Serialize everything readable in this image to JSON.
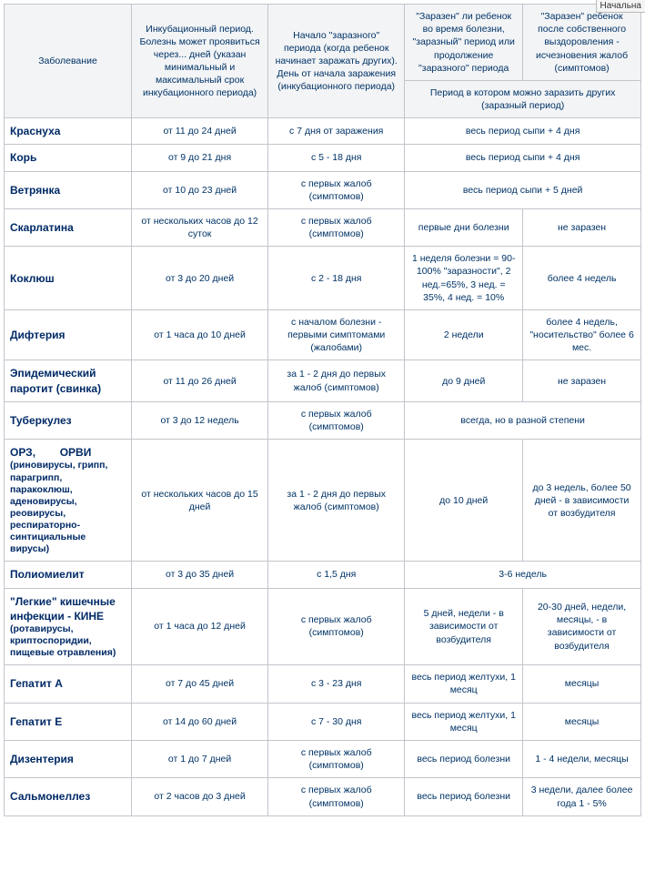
{
  "corner_label": "Начальна",
  "table": {
    "headers": {
      "disease": "Заболевание",
      "incubation": "Инкубационный период. Болезнь может проявиться через... дней (указан минимальный и максимальный срок инкубационного периода)",
      "onset": "Начало \"заразного\" периода (когда ребенок начинает заражать других). День от начала заражения (инкубационного периода)",
      "during": "\"Заразен\" ли ребенок во время болезни, \"заразный\" период или продолжение \"заразного\" периода",
      "after": "\"Заразен\" ребенок после собственного выздоровления - исчезновения жалоб (симптомов)",
      "period_span": "Период в котором можно заразить других (заразный период)"
    },
    "rows": [
      {
        "disease": "Краснуха",
        "sub": "",
        "c2": "от 11 до 24 дней",
        "c3": "с 7 дня от заражения",
        "span": "весь период сыпи + 4 дня",
        "c4": "",
        "c5": ""
      },
      {
        "disease": "Корь",
        "sub": "",
        "c2": "от 9 до 21 дня",
        "c3": "с 5 - 18 дня",
        "span": "весь период сыпи + 4 дня",
        "c4": "",
        "c5": ""
      },
      {
        "disease": "Ветрянка",
        "sub": "",
        "c2": "от 10 до 23 дней",
        "c3": "с первых жалоб (симптомов)",
        "span": "весь период сыпи + 5 дней",
        "c4": "",
        "c5": ""
      },
      {
        "disease": "Скарлатина",
        "sub": "",
        "c2": "от нескольких часов до 12 суток",
        "c3": "с первых жалоб (симптомов)",
        "span": "",
        "c4": "первые дни болезни",
        "c5": "не заразен"
      },
      {
        "disease": "Коклюш",
        "sub": "",
        "c2": "от 3 до 20 дней",
        "c3": "с 2 - 18 дня",
        "span": "",
        "c4": "1 неделя болезни = 90-100% \"заразности\", 2 нед.=65%, 3 нед. = 35%, 4 нед. = 10%",
        "c5": "более 4 недель"
      },
      {
        "disease": "Дифтерия",
        "sub": "",
        "c2": "от 1 часа до 10 дней",
        "c3": "с началом болезни - первыми симптомами (жалобами)",
        "span": "",
        "c4": "2 недели",
        "c5": "более 4 недель, \"носительство\" более 6 мес."
      },
      {
        "disease": "Эпидемический паротит (свинка)",
        "sub": "",
        "c2": "от 11 до 26 дней",
        "c3": "за 1 - 2 дня до первых жалоб (симптомов)",
        "span": "",
        "c4": "до 9 дней",
        "c5": "не заразен"
      },
      {
        "disease": "Туберкулез",
        "sub": "",
        "c2": "от 3 до 12 недель",
        "c3": "с первых жалоб (симптомов)",
        "span": "всегда, но в разной степени",
        "c4": "",
        "c5": ""
      },
      {
        "disease": "ОРЗ,        ОРВИ",
        "sub": "(риновирусы, грипп, парагрипп, паракоклюш, аденовирусы, реовирусы, респираторно-синтициальные вирусы)",
        "c2": "от нескольких часов до 15 дней",
        "c3": "за 1 - 2 дня до первых жалоб (симптомов)",
        "span": "",
        "c4": "до 10 дней",
        "c5": "до 3 недель, более 50 дней - в зависимости от возбудителя"
      },
      {
        "disease": "Полиомиелит",
        "sub": "",
        "c2": "от 3 до 35 дней",
        "c3": "с 1,5 дня",
        "span": "3-6 недель",
        "c4": "",
        "c5": ""
      },
      {
        "disease": "\"Легкие\" кишечные инфекции - КИНЕ",
        "sub": "(ротавирусы, криптоспоридии, пищевые отравления)",
        "c2": "от 1 часа до 12 дней",
        "c3": "с первых жалоб (симптомов)",
        "span": "",
        "c4": "5 дней, недели - в зависимости от возбудителя",
        "c5": "20-30 дней, недели, месяцы, - в зависимости от возбудителя"
      },
      {
        "disease": "Гепатит А",
        "sub": "",
        "c2": "от 7 до 45 дней",
        "c3": "с 3 - 23 дня",
        "span": "",
        "c4": "весь период желтухи, 1 месяц",
        "c5": "месяцы"
      },
      {
        "disease": "Гепатит Е",
        "sub": "",
        "c2": "от 14 до 60 дней",
        "c3": "с 7 - 30 дня",
        "span": "",
        "c4": "весь период желтухи, 1 месяц",
        "c5": "месяцы"
      },
      {
        "disease": "Дизентерия",
        "sub": "",
        "c2": "от 1 до 7 дней",
        "c3": "с первых жалоб (симптомов)",
        "span": "",
        "c4": "весь период болезни",
        "c5": "1 - 4 недели, месяцы"
      },
      {
        "disease": "Сальмонеллез",
        "sub": "",
        "c2": "от 2 часов до 3 дней",
        "c3": "с первых жалоб (симптомов)",
        "span": "",
        "c4": "весь период болезни",
        "c5": "3 недели, далее более года 1 - 5%"
      }
    ]
  }
}
